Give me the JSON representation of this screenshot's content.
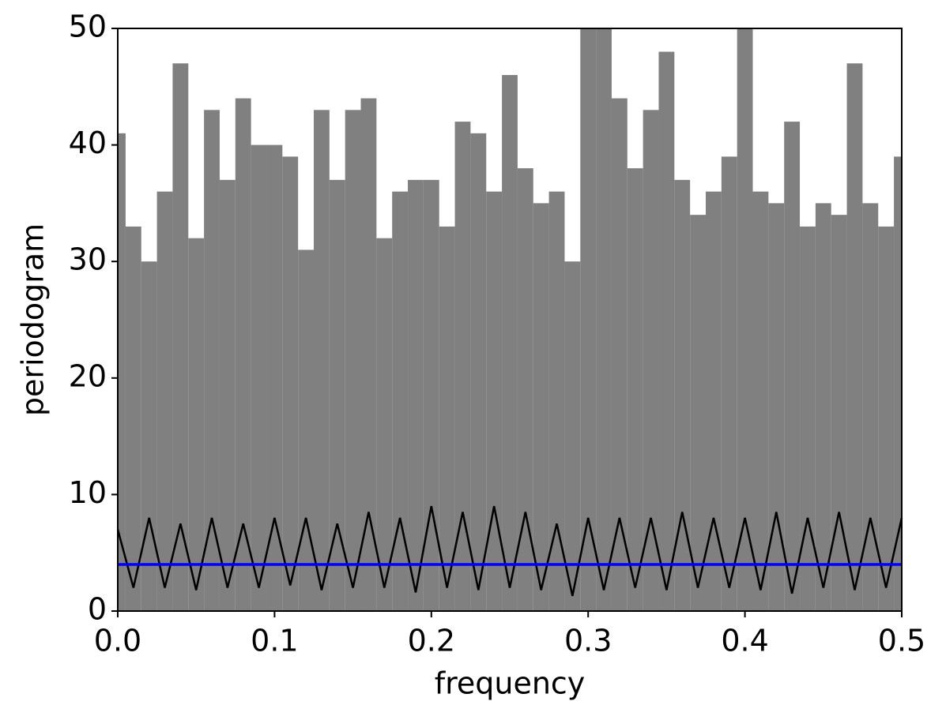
{
  "chart_data": {
    "type": "line",
    "x_label": "frequency",
    "y_label": "periodogram",
    "xlim": [
      0,
      0.5
    ],
    "ylim": [
      0,
      50
    ],
    "xticks": [
      {
        "value": 0,
        "label": "0.0"
      },
      {
        "value": 0.1,
        "label": "0.1"
      },
      {
        "value": 0.2,
        "label": "0.2"
      },
      {
        "value": 0.3,
        "label": "0.3"
      },
      {
        "value": 0.4,
        "label": "0.4"
      },
      {
        "value": 0.5,
        "label": "0.5"
      }
    ],
    "yticks": [
      0,
      10,
      20,
      30,
      40,
      50
    ],
    "x": [
      0,
      0.01,
      0.02,
      0.03,
      0.04,
      0.05,
      0.06,
      0.07,
      0.08,
      0.09,
      0.1,
      0.11,
      0.12,
      0.13,
      0.14,
      0.15,
      0.16,
      0.17,
      0.18,
      0.19,
      0.2,
      0.21,
      0.22,
      0.23,
      0.24,
      0.25,
      0.26,
      0.27,
      0.28,
      0.29,
      0.3,
      0.31,
      0.32,
      0.33,
      0.34,
      0.35,
      0.36,
      0.37,
      0.38,
      0.39,
      0.4,
      0.41,
      0.42,
      0.43,
      0.44,
      0.45,
      0.46,
      0.47,
      0.48,
      0.49,
      0.5
    ],
    "series": [
      {
        "color": "#808080",
        "values": [
          41,
          33,
          30,
          36,
          47,
          32,
          43,
          37,
          44,
          40,
          40,
          39,
          31,
          43,
          37,
          43,
          44,
          32,
          36,
          37,
          37,
          33,
          42,
          41,
          36,
          46,
          38,
          35,
          36,
          30,
          50,
          50,
          44,
          38,
          43,
          48,
          37,
          34,
          36,
          39,
          50,
          36,
          35,
          42,
          33,
          35,
          34,
          47,
          35,
          33,
          39
        ]
      },
      {
        "color": "#000000",
        "values": [
          7,
          2,
          8,
          2,
          7.5,
          1.8,
          8,
          2,
          7.5,
          2,
          8,
          2.2,
          8,
          1.8,
          7.5,
          2,
          8.5,
          2,
          8,
          1.6,
          9,
          2,
          8.5,
          1.8,
          9,
          2,
          8.5,
          1.8,
          7.5,
          1.3,
          8,
          1.8,
          8,
          2,
          8,
          1.8,
          8.5,
          2,
          8,
          2,
          8,
          1.8,
          8.5,
          1.5,
          8,
          2,
          8.5,
          1.8,
          8,
          2,
          8
        ]
      },
      {
        "color": "#0000ff",
        "values": [
          4,
          4,
          4,
          4,
          4,
          4,
          4,
          4,
          4,
          4,
          4,
          4,
          4,
          4,
          4,
          4,
          4,
          4,
          4,
          4,
          4,
          4,
          4,
          4,
          4,
          4,
          4,
          4,
          4,
          4,
          4,
          4,
          4,
          4,
          4,
          4,
          4,
          4,
          4,
          4,
          4,
          4,
          4,
          4,
          4,
          4,
          4,
          4,
          4,
          4,
          4
        ]
      }
    ]
  }
}
